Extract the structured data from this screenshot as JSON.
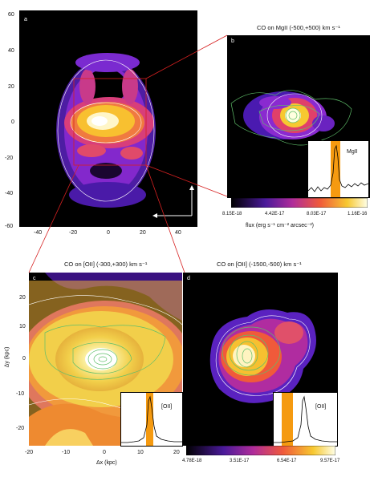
{
  "panels": {
    "a": {
      "label": "a",
      "yticks": [
        "60",
        "40",
        "20",
        "0",
        "-20",
        "-40",
        "-60"
      ],
      "xticks": [
        "-40",
        "-20",
        "0",
        "20",
        "40"
      ]
    },
    "b": {
      "label": "b",
      "title": "CO on MgII (-500,+500) km s⁻¹",
      "inset_label": "MgII",
      "colorbar_ticks": [
        "8.15E-18",
        "4.42E-17",
        "8.03E-17",
        "1.16E-16"
      ],
      "colorbar_label": "flux (erg s⁻¹ cm⁻² arcsec⁻²)"
    },
    "c": {
      "label": "c",
      "title": "CO on [OII] (-300,+300) km s⁻¹",
      "inset_label": "[OII]",
      "yaxis_label": "Δy (kpc)",
      "yticks": [
        "20",
        "10",
        "0",
        "-10",
        "-20"
      ],
      "xticks": [
        "-20",
        "-10",
        "0",
        "10",
        "20"
      ],
      "xaxis_label": "Δx (kpc)"
    },
    "d": {
      "label": "d",
      "title": "CO on [OII] (-1500,-500) km s⁻¹",
      "inset_label": "[OII]",
      "colorbar_ticks": [
        "4.78E-18",
        "3.51E-17",
        "6.54E-17",
        "9.57E-17"
      ]
    }
  },
  "colors": {
    "background": "#000000",
    "halo": "#6b2cd6",
    "mid": "#e0406a",
    "high": "#f7c830",
    "peak": "#ffffe8",
    "co_contour": "#5fbf6a",
    "flux_contour": "#ffffff",
    "connector": "#d62020",
    "wavelength_band": "#f59a10"
  }
}
